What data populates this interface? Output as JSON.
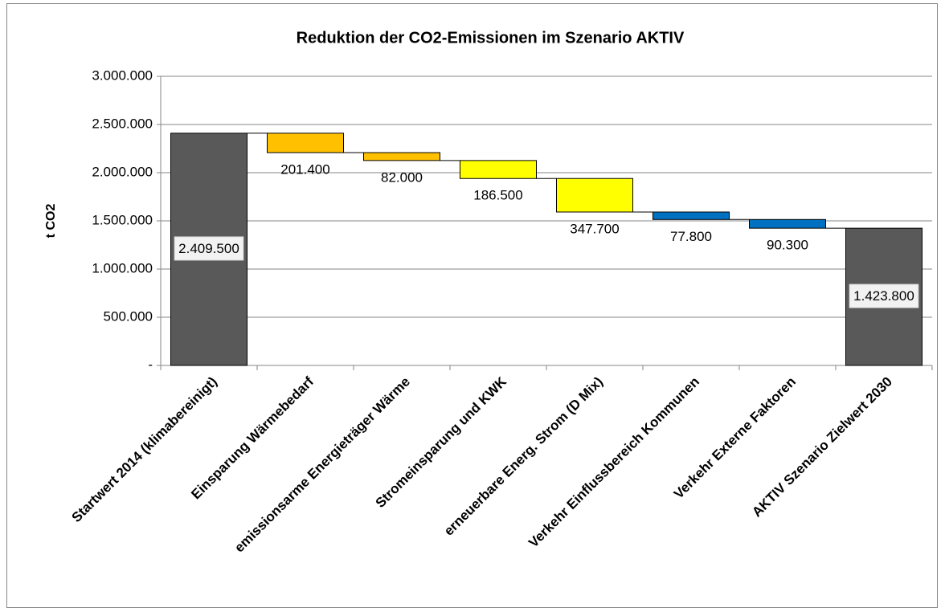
{
  "chart_data": {
    "type": "waterfall",
    "title": "Reduktion der CO2-Emissionen im Szenario AKTIV",
    "y_label": "t CO2",
    "categories": [
      "Startwert 2014 (klimabereinigt)",
      "Einsparung Wärmebedarf",
      "emissionsarme Energieträger Wärme",
      "Stromeinsparung und KWK",
      "erneuerbare Energ. Strom (D Mix)",
      "Verkehr Einflussbereich Kommunen",
      "Verkehr Externe Faktoren",
      "AKTIV Szenario Zielwert 2030"
    ],
    "values": [
      2409500,
      201400,
      82000,
      186500,
      347700,
      77800,
      90300,
      1423800
    ],
    "value_labels": [
      "2.409.500",
      "201.400",
      "82.000",
      "186.500",
      "347.700",
      "77.800",
      "90.300",
      "1.423.800"
    ],
    "measure": [
      "total",
      "decrease",
      "decrease",
      "decrease",
      "decrease",
      "decrease",
      "decrease",
      "total"
    ],
    "colors": [
      "#595959",
      "#ffc000",
      "#ffc000",
      "#ffff00",
      "#ffff00",
      "#0070c0",
      "#0070c0",
      "#595959"
    ],
    "ylim": [
      0,
      3000000
    ],
    "yticks": [
      {
        "value": 0,
        "label": "-"
      },
      {
        "value": 500000,
        "label": "500.000"
      },
      {
        "value": 1000000,
        "label": "1.000.000"
      },
      {
        "value": 1500000,
        "label": "1.500.000"
      },
      {
        "value": 2000000,
        "label": "2.000.000"
      },
      {
        "value": 2500000,
        "label": "2.500.000"
      },
      {
        "value": 3000000,
        "label": "3.000.000"
      }
    ],
    "grid": true
  }
}
